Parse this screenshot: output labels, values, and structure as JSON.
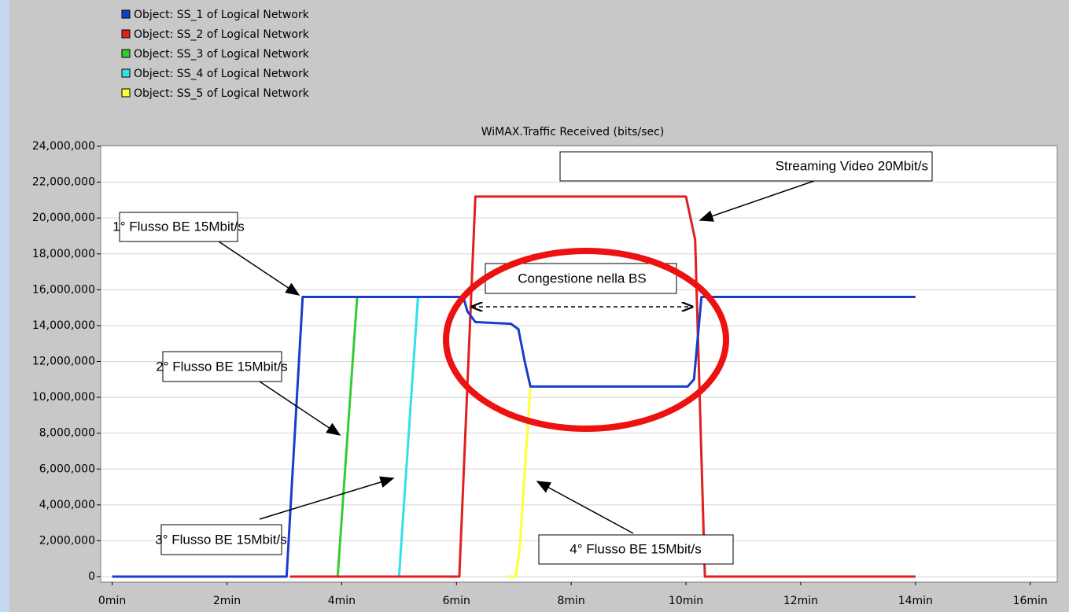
{
  "chart_data": {
    "type": "line",
    "title": "WiMAX.Traffic Received (bits/sec)",
    "xlim": [
      -0.2,
      16.47
    ],
    "ylim": [
      0,
      24000000
    ],
    "grid": true,
    "xticks": [
      {
        "value": 0,
        "label": "0min"
      },
      {
        "value": 2,
        "label": "2min"
      },
      {
        "value": 4,
        "label": "4min"
      },
      {
        "value": 6,
        "label": "6min"
      },
      {
        "value": 8,
        "label": "8min"
      },
      {
        "value": 10,
        "label": "10min"
      },
      {
        "value": 12,
        "label": "12min"
      },
      {
        "value": 14,
        "label": "14min"
      },
      {
        "value": 16,
        "label": "16min"
      }
    ],
    "yticks": [
      {
        "value": 0,
        "label": "0"
      },
      {
        "value": 2000000,
        "label": "2,000,000"
      },
      {
        "value": 4000000,
        "label": "4,000,000"
      },
      {
        "value": 6000000,
        "label": "6,000,000"
      },
      {
        "value": 8000000,
        "label": "8,000,000"
      },
      {
        "value": 10000000,
        "label": "10,000,000"
      },
      {
        "value": 12000000,
        "label": "12,000,000"
      },
      {
        "value": 14000000,
        "label": "14,000,000"
      },
      {
        "value": 16000000,
        "label": "16,000,000"
      },
      {
        "value": 18000000,
        "label": "18,000,000"
      },
      {
        "value": 20000000,
        "label": "20,000,000"
      },
      {
        "value": 22000000,
        "label": "22,000,000"
      },
      {
        "value": 24000000,
        "label": "24,000,000"
      }
    ],
    "series": [
      {
        "name": "Object: SS_5 of Logical Network",
        "color": "#ffff33",
        "x": [
          6.9,
          7.03,
          7.1,
          7.29
        ],
        "values": [
          0,
          0,
          1500000,
          10600000
        ]
      },
      {
        "name": "Object: SS_4 of Logical Network",
        "color": "#33e0e8",
        "x": [
          3.1,
          5.0,
          5.33,
          6.1
        ],
        "values": [
          0,
          0,
          15600000,
          15600000
        ]
      },
      {
        "name": "Object: SS_3 of Logical Network",
        "color": "#33cc33",
        "x": [
          3.1,
          3.93,
          4.27,
          6.1
        ],
        "values": [
          0,
          0,
          15600000,
          15600000
        ]
      },
      {
        "name": "Object: SS_2 of Logical Network",
        "color": "#e02020",
        "x": [
          3.1,
          6.05,
          6.33,
          10.0,
          10.16,
          10.33,
          14.0
        ],
        "values": [
          0,
          0,
          21200000,
          21200000,
          18800000,
          0,
          0
        ]
      },
      {
        "name": "Object: SS_1 of Logical Network",
        "color": "#1a3ccc",
        "x": [
          0,
          3.04,
          3.32,
          6.12,
          6.19,
          6.33,
          6.95,
          7.08,
          7.19,
          7.29,
          10.03,
          10.14,
          10.27,
          14.0
        ],
        "values": [
          0,
          0,
          15600000,
          15600000,
          14800000,
          14200000,
          14100000,
          13800000,
          12000000,
          10600000,
          10600000,
          11000000,
          15600000,
          15600000
        ]
      }
    ],
    "legend_order": [
      4,
      3,
      2,
      1,
      0
    ],
    "annotations": [
      "1° Flusso BE 15Mbit/s",
      "2° Flusso BE 15Mbit/s",
      "3° Flusso BE 15Mbit/s",
      "4° Flusso BE 15Mbit/s",
      "Streaming Video 20Mbit/s",
      "Congestione nella BS"
    ]
  }
}
